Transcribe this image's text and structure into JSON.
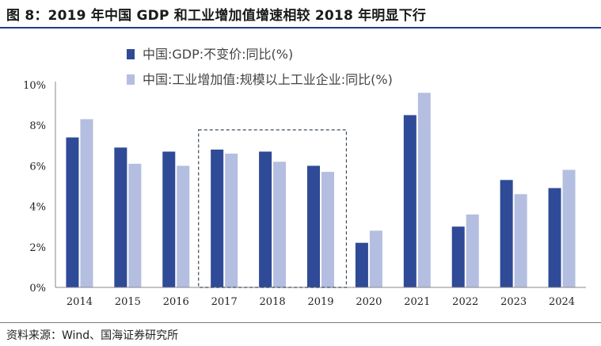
{
  "header": {
    "title": "图 8：2019 年中国 GDP 和工业增加值增速相较 2018 年明显下行"
  },
  "footer": {
    "source": "资料来源：Wind、国海证券研究所"
  },
  "colors": {
    "series_dark": "#2f4a96",
    "series_light": "#b4bee0",
    "axis": "#888888",
    "highlight_box": "#3a4a5a",
    "title_rule": "#1f3c88"
  },
  "chart_data": {
    "type": "bar",
    "title": "",
    "xlabel": "",
    "ylabel": "",
    "categories": [
      "2014",
      "2015",
      "2016",
      "2017",
      "2018",
      "2019",
      "2020",
      "2021",
      "2022",
      "2023",
      "2024"
    ],
    "series": [
      {
        "name": "中国:GDP:不变价:同比(%)",
        "values": [
          7.4,
          6.9,
          6.7,
          6.8,
          6.7,
          6.0,
          2.2,
          8.5,
          3.0,
          5.3,
          4.9
        ]
      },
      {
        "name": "中国:工业增加值:规模以上工业企业:同比(%)",
        "values": [
          8.3,
          6.1,
          6.0,
          6.6,
          6.2,
          5.7,
          2.8,
          9.6,
          3.6,
          4.6,
          5.8
        ]
      }
    ],
    "ylim": [
      0,
      10
    ],
    "yticks": [
      0,
      2,
      4,
      6,
      8,
      10
    ],
    "ytick_labels": [
      "0%",
      "2%",
      "4%",
      "6%",
      "8%",
      "10%"
    ],
    "highlight_range": [
      "2017",
      "2019"
    ],
    "legend_position": "top-left",
    "grid": false
  }
}
